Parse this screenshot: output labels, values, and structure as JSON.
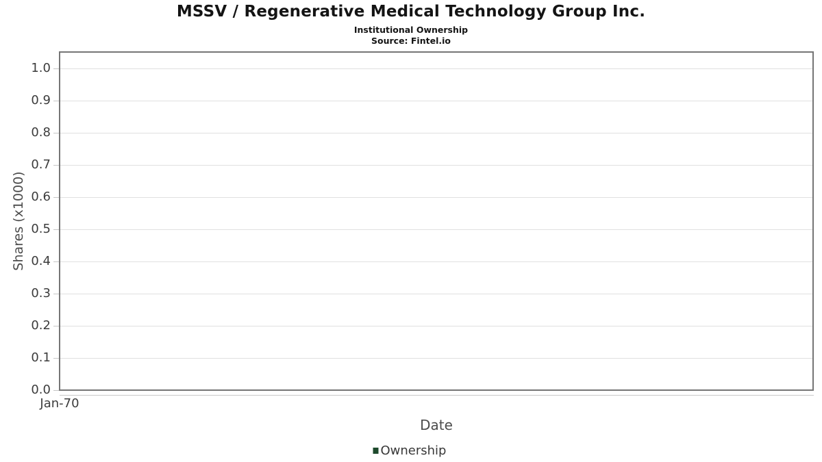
{
  "chart_data": {
    "type": "line",
    "title": "MSSV / Regenerative Medical Technology Group Inc.",
    "subtitle": "Institutional Ownership",
    "source": "Source: Fintel.io",
    "xlabel": "Date",
    "ylabel": "Shares (x1000)",
    "x_tick_labels": [
      "Jan-70"
    ],
    "y_tick_labels": [
      "0.0",
      "0.1",
      "0.2",
      "0.3",
      "0.4",
      "0.5",
      "0.6",
      "0.7",
      "0.8",
      "0.9",
      "1.0"
    ],
    "ylim": [
      0.0,
      1.05
    ],
    "grid": true,
    "series": [
      {
        "name": "Ownership",
        "color": "#1e4a2c",
        "x": [],
        "values": []
      }
    ],
    "legend": {
      "position": "bottom",
      "entries": [
        {
          "label": "Ownership",
          "marker_color": "#1e4a2c"
        }
      ]
    },
    "colors": {
      "plot_border": "#757575",
      "gridline": "#e0e0e0",
      "tick": "#c6c6c6",
      "tick_label": "#3c3c3c",
      "axis_title": "#4b4b4b",
      "title_text": "#141414",
      "background": "#ffffff"
    }
  }
}
